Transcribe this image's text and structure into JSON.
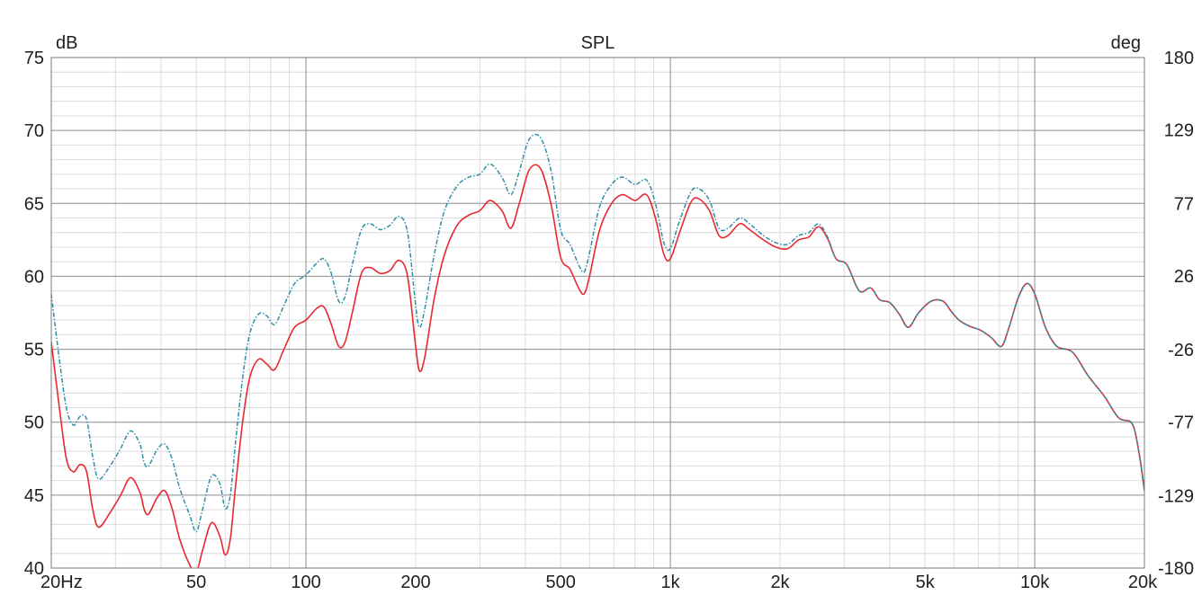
{
  "chart_data": {
    "type": "line",
    "title": "SPL",
    "y_unit_left": "dB",
    "y_unit_right": "deg",
    "x_scale": "log",
    "x_range_hz": [
      20,
      20000
    ],
    "ylim_left": [
      40,
      75
    ],
    "ylim_right": [
      -180,
      180
    ],
    "grid": true,
    "x_tick_labels": [
      {
        "hz": 20,
        "label": "20Hz"
      },
      {
        "hz": 50,
        "label": "50"
      },
      {
        "hz": 100,
        "label": "100"
      },
      {
        "hz": 200,
        "label": "200"
      },
      {
        "hz": 500,
        "label": "500"
      },
      {
        "hz": 1000,
        "label": "1k"
      },
      {
        "hz": 2000,
        "label": "2k"
      },
      {
        "hz": 5000,
        "label": "5k"
      },
      {
        "hz": 10000,
        "label": "10k"
      },
      {
        "hz": 20000,
        "label": "20k"
      }
    ],
    "y_left_ticks": [
      75,
      70,
      65,
      60,
      55,
      50,
      45,
      40
    ],
    "y_right_ticks": [
      {
        "value": 180,
        "label": "180"
      },
      {
        "value": 129,
        "label": "129"
      },
      {
        "value": 77,
        "label": "77"
      },
      {
        "value": 26,
        "label": "26"
      },
      {
        "value": -26,
        "label": "-26"
      },
      {
        "value": -77,
        "label": "-77"
      },
      {
        "value": -129,
        "label": "-129"
      },
      {
        "value": -180,
        "label": "-180"
      }
    ],
    "series": [
      {
        "color": "#e8292f",
        "style": "solid",
        "points": [
          [
            20,
            55.5
          ],
          [
            21,
            51.2
          ],
          [
            22,
            47.5
          ],
          [
            23,
            46.6
          ],
          [
            24,
            47.1
          ],
          [
            25,
            46.6
          ],
          [
            26,
            44.0
          ],
          [
            27,
            42.8
          ],
          [
            29,
            43.8
          ],
          [
            31,
            45.0
          ],
          [
            33,
            46.2
          ],
          [
            35,
            45.2
          ],
          [
            36,
            44.0
          ],
          [
            37,
            43.7
          ],
          [
            39,
            44.8
          ],
          [
            41,
            45.3
          ],
          [
            43,
            44.0
          ],
          [
            45,
            42.0
          ],
          [
            48,
            40.2
          ],
          [
            50,
            39.7
          ],
          [
            52,
            41.2
          ],
          [
            55,
            43.1
          ],
          [
            58,
            42.2
          ],
          [
            60,
            40.9
          ],
          [
            62,
            42.0
          ],
          [
            64,
            45.5
          ],
          [
            67,
            50.0
          ],
          [
            70,
            53.0
          ],
          [
            74,
            54.3
          ],
          [
            78,
            54.0
          ],
          [
            82,
            53.6
          ],
          [
            87,
            55.0
          ],
          [
            93,
            56.5
          ],
          [
            100,
            57.0
          ],
          [
            107,
            57.8
          ],
          [
            112,
            57.9
          ],
          [
            117,
            56.8
          ],
          [
            123,
            55.2
          ],
          [
            128,
            55.5
          ],
          [
            134,
            57.5
          ],
          [
            142,
            60.2
          ],
          [
            150,
            60.6
          ],
          [
            160,
            60.2
          ],
          [
            170,
            60.4
          ],
          [
            180,
            61.1
          ],
          [
            190,
            60.0
          ],
          [
            200,
            55.2
          ],
          [
            205,
            53.5
          ],
          [
            212,
            54.5
          ],
          [
            225,
            58.5
          ],
          [
            240,
            61.5
          ],
          [
            260,
            63.5
          ],
          [
            280,
            64.2
          ],
          [
            300,
            64.5
          ],
          [
            320,
            65.2
          ],
          [
            345,
            64.5
          ],
          [
            365,
            63.3
          ],
          [
            385,
            65.0
          ],
          [
            410,
            67.3
          ],
          [
            440,
            67.4
          ],
          [
            470,
            65.0
          ],
          [
            500,
            61.3
          ],
          [
            530,
            60.5
          ],
          [
            560,
            59.2
          ],
          [
            580,
            58.8
          ],
          [
            600,
            60.0
          ],
          [
            640,
            63.2
          ],
          [
            690,
            65.0
          ],
          [
            740,
            65.6
          ],
          [
            800,
            65.2
          ],
          [
            860,
            65.6
          ],
          [
            910,
            64.0
          ],
          [
            960,
            61.5
          ],
          [
            1000,
            61.2
          ],
          [
            1060,
            63.0
          ],
          [
            1140,
            65.1
          ],
          [
            1200,
            65.3
          ],
          [
            1280,
            64.5
          ],
          [
            1360,
            62.8
          ],
          [
            1440,
            62.8
          ],
          [
            1550,
            63.6
          ],
          [
            1650,
            63.2
          ],
          [
            1800,
            62.5
          ],
          [
            1950,
            62.0
          ],
          [
            2100,
            61.9
          ],
          [
            2250,
            62.5
          ],
          [
            2400,
            62.7
          ],
          [
            2550,
            63.4
          ],
          [
            2700,
            62.6
          ],
          [
            2850,
            61.2
          ],
          [
            3050,
            60.8
          ],
          [
            3300,
            59.0
          ],
          [
            3550,
            59.2
          ],
          [
            3750,
            58.4
          ],
          [
            4000,
            58.2
          ],
          [
            4250,
            57.4
          ],
          [
            4500,
            56.5
          ],
          [
            4800,
            57.5
          ],
          [
            5200,
            58.3
          ],
          [
            5600,
            58.3
          ],
          [
            5900,
            57.6
          ],
          [
            6200,
            57.0
          ],
          [
            6600,
            56.6
          ],
          [
            7100,
            56.3
          ],
          [
            7600,
            55.8
          ],
          [
            8100,
            55.2
          ],
          [
            8500,
            56.5
          ],
          [
            9000,
            58.5
          ],
          [
            9500,
            59.5
          ],
          [
            10000,
            58.8
          ],
          [
            10700,
            56.5
          ],
          [
            11500,
            55.2
          ],
          [
            12700,
            54.8
          ],
          [
            14000,
            53.2
          ],
          [
            15500,
            51.8
          ],
          [
            17000,
            50.3
          ],
          [
            18500,
            49.9
          ],
          [
            19300,
            48.0
          ],
          [
            20000,
            45.3
          ]
        ]
      },
      {
        "color": "#2e8fa6",
        "style": "dash-dot",
        "points": [
          [
            20,
            58.8
          ],
          [
            21,
            54.5
          ],
          [
            22,
            51.0
          ],
          [
            23,
            49.8
          ],
          [
            24,
            50.4
          ],
          [
            25,
            50.2
          ],
          [
            26,
            47.6
          ],
          [
            27,
            46.1
          ],
          [
            29,
            47.0
          ],
          [
            31,
            48.2
          ],
          [
            33,
            49.4
          ],
          [
            35,
            48.5
          ],
          [
            36,
            47.2
          ],
          [
            37,
            47.0
          ],
          [
            39,
            48.1
          ],
          [
            41,
            48.5
          ],
          [
            43,
            47.4
          ],
          [
            45,
            45.5
          ],
          [
            48,
            43.6
          ],
          [
            50,
            42.5
          ],
          [
            52,
            44.0
          ],
          [
            55,
            46.3
          ],
          [
            58,
            45.8
          ],
          [
            60,
            44.1
          ],
          [
            62,
            45.0
          ],
          [
            64,
            48.5
          ],
          [
            67,
            53.0
          ],
          [
            70,
            56.0
          ],
          [
            74,
            57.4
          ],
          [
            78,
            57.3
          ],
          [
            82,
            56.7
          ],
          [
            87,
            58.0
          ],
          [
            93,
            59.5
          ],
          [
            100,
            60.1
          ],
          [
            107,
            60.9
          ],
          [
            112,
            61.2
          ],
          [
            117,
            60.3
          ],
          [
            123,
            58.3
          ],
          [
            128,
            58.6
          ],
          [
            134,
            60.8
          ],
          [
            142,
            63.2
          ],
          [
            150,
            63.6
          ],
          [
            160,
            63.2
          ],
          [
            170,
            63.5
          ],
          [
            180,
            64.1
          ],
          [
            190,
            63.0
          ],
          [
            200,
            58.0
          ],
          [
            205,
            56.5
          ],
          [
            212,
            57.8
          ],
          [
            225,
            61.5
          ],
          [
            240,
            64.5
          ],
          [
            260,
            66.2
          ],
          [
            280,
            66.8
          ],
          [
            300,
            67.0
          ],
          [
            320,
            67.7
          ],
          [
            345,
            66.8
          ],
          [
            365,
            65.6
          ],
          [
            385,
            67.2
          ],
          [
            410,
            69.4
          ],
          [
            440,
            69.5
          ],
          [
            470,
            67.3
          ],
          [
            500,
            63.2
          ],
          [
            530,
            62.2
          ],
          [
            560,
            60.8
          ],
          [
            580,
            60.3
          ],
          [
            600,
            61.6
          ],
          [
            640,
            64.8
          ],
          [
            690,
            66.3
          ],
          [
            740,
            66.8
          ],
          [
            800,
            66.3
          ],
          [
            860,
            66.6
          ],
          [
            910,
            65.0
          ],
          [
            960,
            62.3
          ],
          [
            1000,
            61.9
          ],
          [
            1060,
            63.8
          ],
          [
            1140,
            65.8
          ],
          [
            1200,
            66.0
          ],
          [
            1280,
            65.2
          ],
          [
            1360,
            63.3
          ],
          [
            1440,
            63.3
          ],
          [
            1550,
            64.0
          ],
          [
            1650,
            63.6
          ],
          [
            1800,
            62.8
          ],
          [
            1950,
            62.3
          ],
          [
            2100,
            62.2
          ],
          [
            2250,
            62.8
          ],
          [
            2400,
            63.0
          ],
          [
            2550,
            63.6
          ],
          [
            2700,
            62.7
          ],
          [
            2850,
            61.2
          ],
          [
            3050,
            60.8
          ],
          [
            3300,
            59.0
          ],
          [
            3550,
            59.2
          ],
          [
            3750,
            58.4
          ],
          [
            4000,
            58.2
          ],
          [
            4250,
            57.4
          ],
          [
            4500,
            56.5
          ],
          [
            4800,
            57.5
          ],
          [
            5200,
            58.3
          ],
          [
            5600,
            58.3
          ],
          [
            5900,
            57.6
          ],
          [
            6200,
            57.0
          ],
          [
            6600,
            56.6
          ],
          [
            7100,
            56.3
          ],
          [
            7600,
            55.8
          ],
          [
            8100,
            55.2
          ],
          [
            8500,
            56.5
          ],
          [
            9000,
            58.5
          ],
          [
            9500,
            59.5
          ],
          [
            10000,
            58.8
          ],
          [
            10700,
            56.5
          ],
          [
            11500,
            55.2
          ],
          [
            12700,
            54.8
          ],
          [
            14000,
            53.2
          ],
          [
            15500,
            51.8
          ],
          [
            17000,
            50.3
          ],
          [
            18500,
            49.9
          ],
          [
            19300,
            48.0
          ],
          [
            20000,
            45.3
          ]
        ]
      }
    ]
  }
}
